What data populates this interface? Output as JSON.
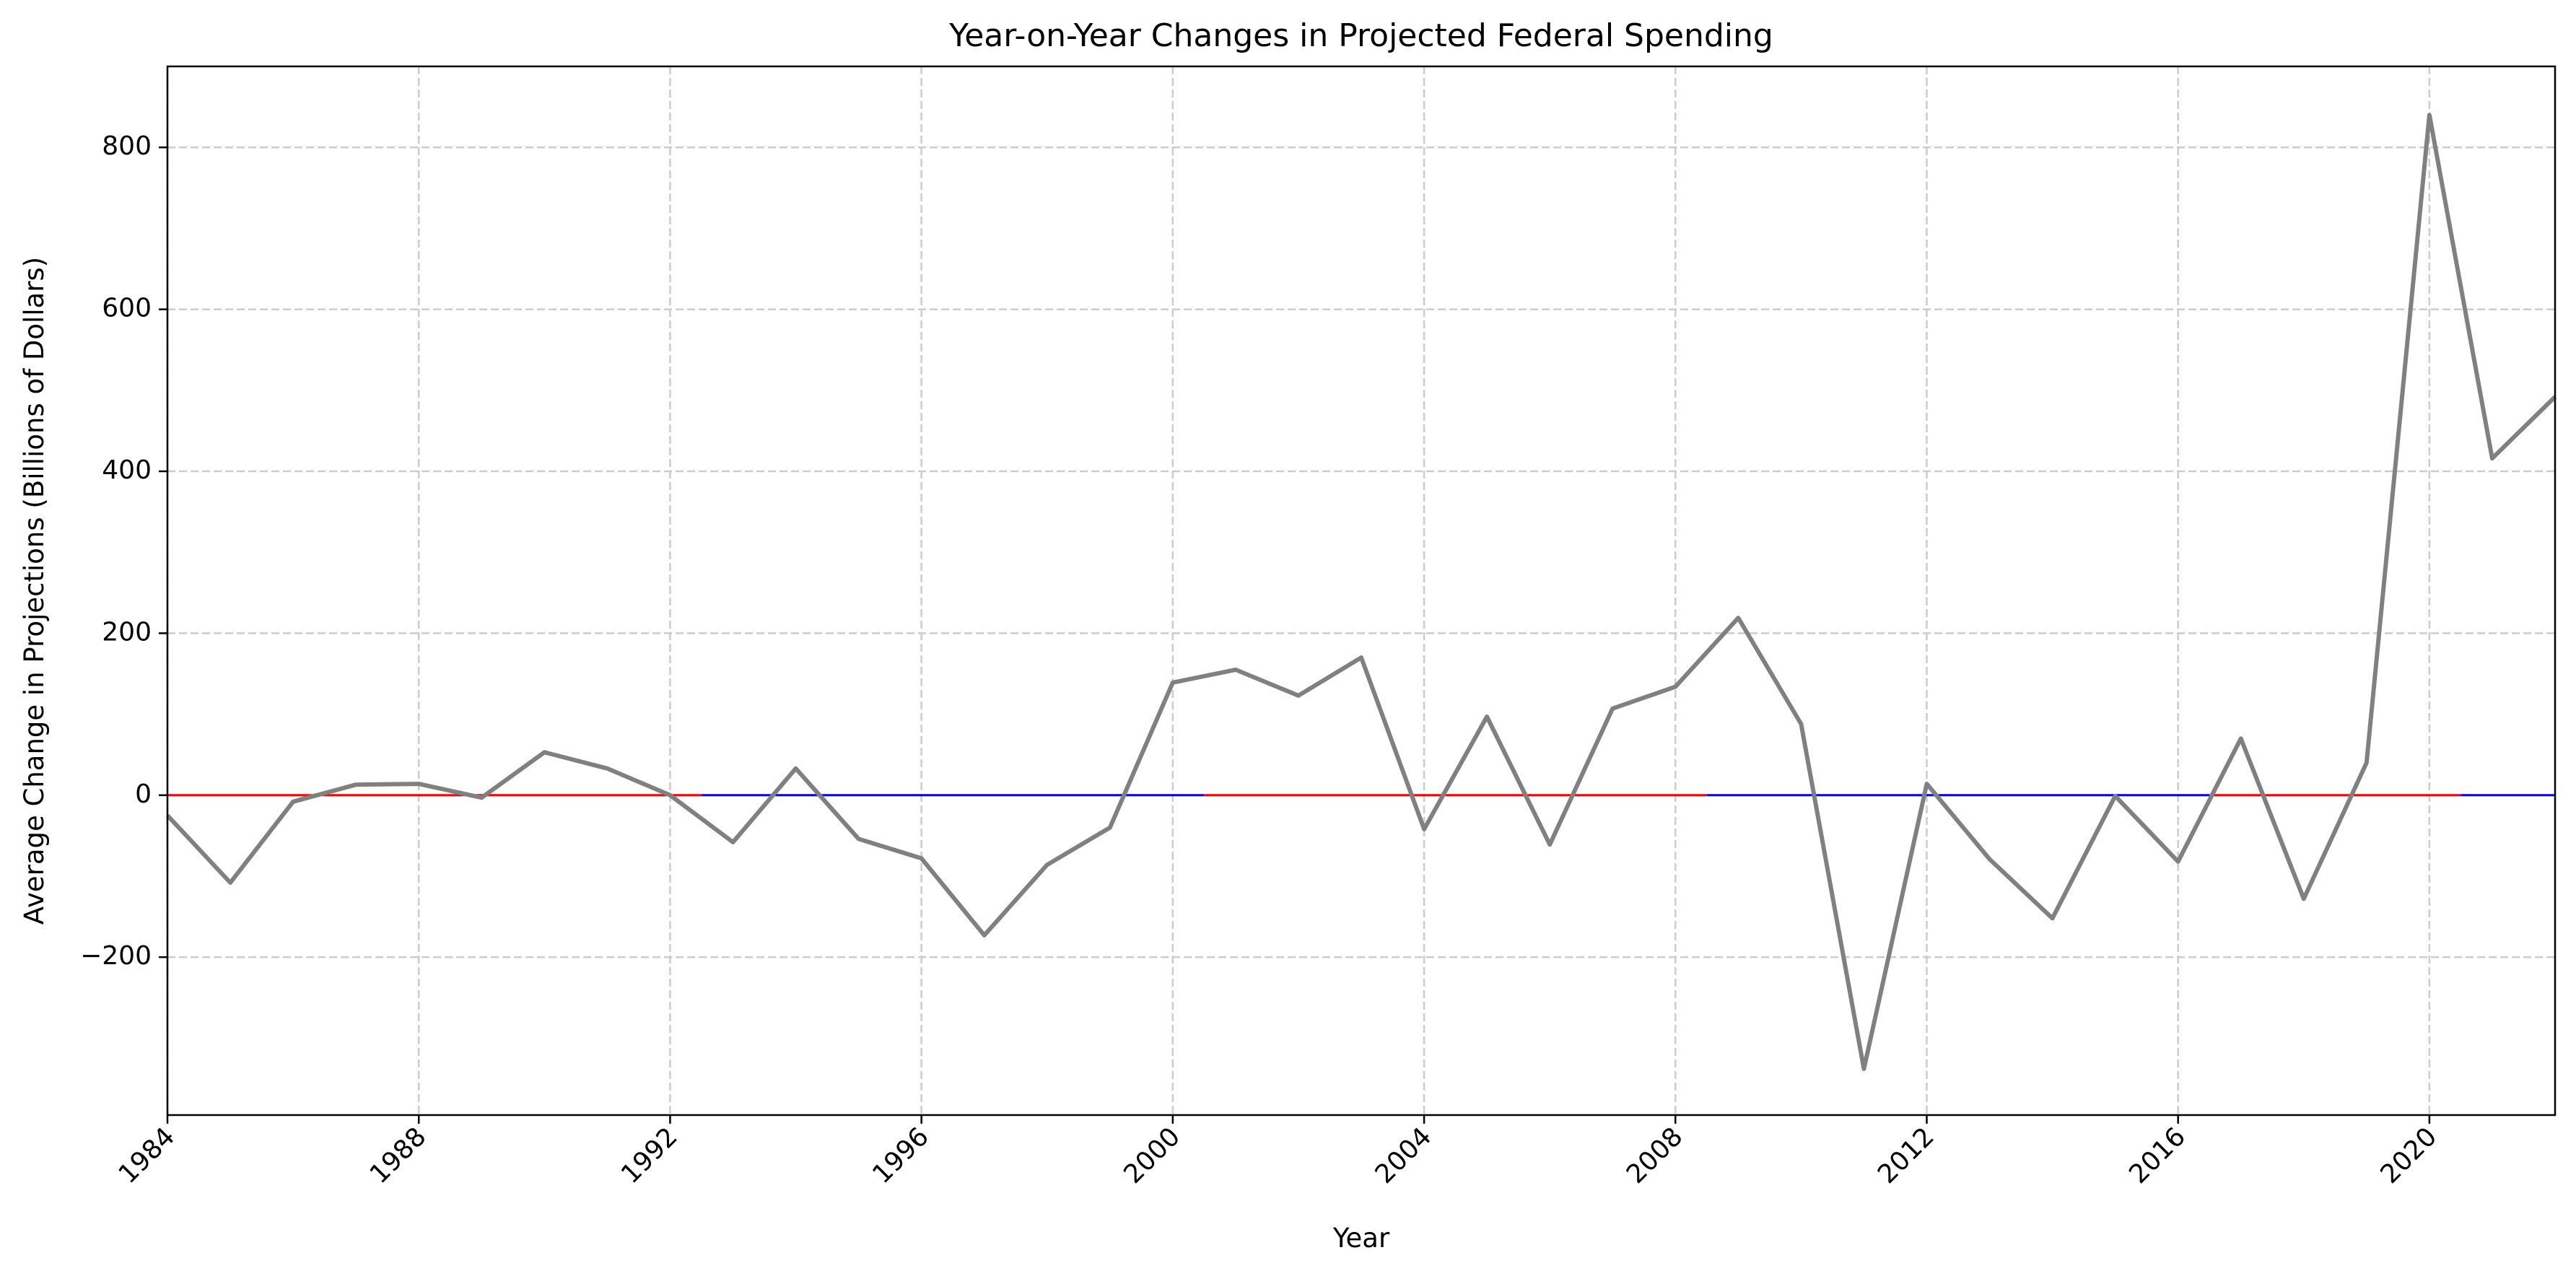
{
  "chart_data": {
    "type": "line",
    "title": "Year-on-Year Changes in Projected Federal Spending",
    "xlabel": "Year",
    "ylabel": "Average Change in Projections (Billions of Dollars)",
    "xlim": [
      1984,
      2022
    ],
    "ylim": [
      -395,
      900
    ],
    "grid": true,
    "x_ticks": [
      1984,
      1988,
      1992,
      1996,
      2000,
      2004,
      2008,
      2012,
      2016,
      2020
    ],
    "y_ticks": [
      -200,
      0,
      200,
      400,
      600,
      800
    ],
    "x_tick_labels": [
      "1984",
      "1988",
      "1992",
      "1996",
      "2000",
      "2004",
      "2008",
      "2012",
      "2016",
      "2020"
    ],
    "y_tick_labels": [
      "−200",
      "0",
      "200",
      "400",
      "600",
      "800"
    ],
    "series": [
      {
        "color": "#808080",
        "x": [
          1984,
          1985,
          1986,
          1987,
          1988,
          1989,
          1990,
          1991,
          1992,
          1993,
          1994,
          1995,
          1996,
          1997,
          1998,
          1999,
          2000,
          2001,
          2002,
          2003,
          2004,
          2005,
          2006,
          2007,
          2008,
          2009,
          2010,
          2011,
          2012,
          2013,
          2014,
          2015,
          2016,
          2017,
          2018,
          2019,
          2020,
          2021,
          2022
        ],
        "values": [
          -25,
          -108,
          -8,
          13,
          14,
          -3,
          53,
          33,
          0,
          -58,
          33,
          -54,
          -78,
          -173,
          -86,
          -40,
          139,
          155,
          123,
          170,
          -42,
          97,
          -61,
          107,
          134,
          219,
          88,
          -338,
          14,
          -79,
          -152,
          -1,
          -82,
          70,
          -128,
          40,
          840,
          416,
          492
        ]
      }
    ],
    "baseline_segments": [
      {
        "start": 1984,
        "end": 1992.5,
        "value": 0,
        "color": "#ff0000"
      },
      {
        "start": 1992.5,
        "end": 2000.5,
        "value": 0,
        "color": "#0000ff"
      },
      {
        "start": 2000.5,
        "end": 2008.5,
        "value": 0,
        "color": "#ff0000"
      },
      {
        "start": 2008.5,
        "end": 2016.5,
        "value": 0,
        "color": "#0000ff"
      },
      {
        "start": 2016.5,
        "end": 2020.5,
        "value": 0,
        "color": "#ff0000"
      },
      {
        "start": 2020.5,
        "end": 2022,
        "value": 0,
        "color": "#0000ff"
      }
    ]
  }
}
